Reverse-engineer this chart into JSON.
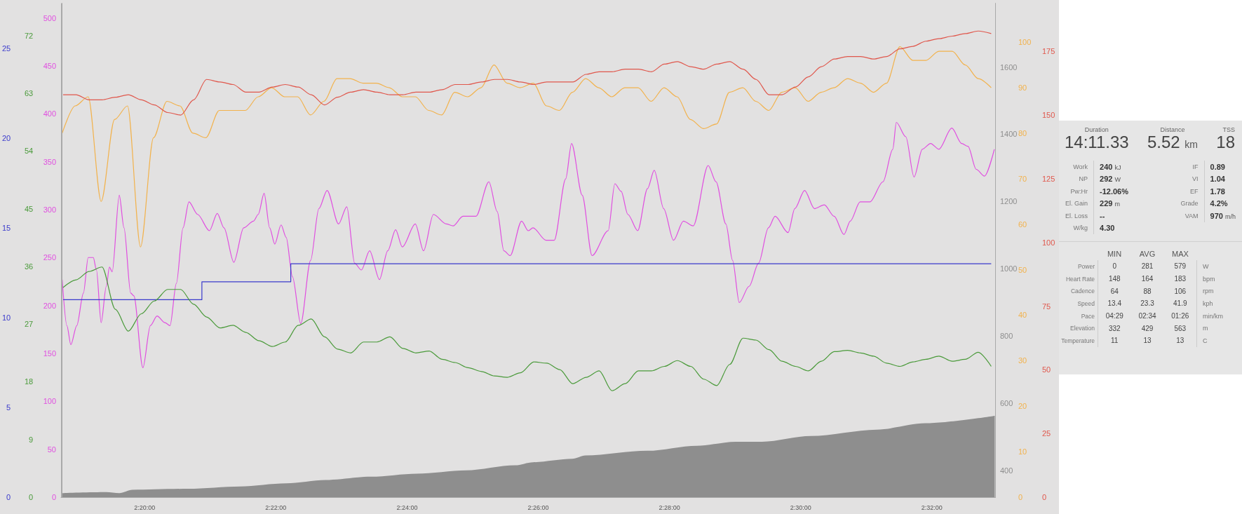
{
  "chart_data": [
    {
      "type": "line",
      "marker": "none",
      "xlim": [
        2.3121,
        2.5494
      ],
      "xticks": [
        {
          "value": 2.33333,
          "label": "2:20:00"
        },
        {
          "value": 2.36667,
          "label": "2:22:00"
        },
        {
          "value": 2.4,
          "label": "2:24:00"
        },
        {
          "value": 2.43333,
          "label": "2:26:00"
        },
        {
          "value": 2.46667,
          "label": "2:28:00"
        },
        {
          "value": 2.5,
          "label": "2:30:00"
        },
        {
          "value": 2.53333,
          "label": "2:32:00"
        }
      ],
      "ylim": [
        0,
        515
      ],
      "yticks": [
        0,
        50,
        100,
        150,
        200,
        250,
        300,
        350,
        400,
        450,
        500
      ],
      "y2lim": [
        320,
        1789
      ],
      "y2ticks": [
        400,
        600,
        800,
        1000,
        1200,
        1400,
        1600
      ],
      "y3lim": [
        0,
        108.5
      ],
      "y3ticks": [
        0,
        10,
        20,
        30,
        40,
        50,
        60,
        70,
        80,
        90,
        100
      ],
      "series": [
        {
          "type": "area",
          "axis": "y2",
          "color": "#8e8e8e",
          "x": [
            2.3124,
            2.3236,
            2.3269,
            2.3302,
            2.3444,
            2.3576,
            2.3693,
            2.3793,
            2.3909,
            2.4025,
            2.415,
            2.4275,
            2.432,
            2.442,
            2.4453,
            2.4611,
            2.4736,
            2.4835,
            2.4902,
            2.5026,
            2.5193,
            2.5317,
            2.5493
          ],
          "values": [
            332,
            335,
            332,
            342,
            345,
            352,
            361,
            371,
            381,
            390,
            400,
            415,
            424,
            434,
            444,
            458,
            473,
            485,
            485,
            502,
            521,
            540,
            562
          ]
        },
        {
          "type": "line",
          "color": "#e04fe0",
          "x": [
            2.3124,
            2.3136,
            2.3146,
            2.3161,
            2.3178,
            2.319,
            2.3203,
            2.3211,
            2.3223,
            2.3236,
            2.3244,
            2.3251,
            2.3269,
            2.3281,
            2.3298,
            2.3306,
            2.3329,
            2.3348,
            2.3365,
            2.3385,
            2.3398,
            2.3414,
            2.3431,
            2.3446,
            2.3468,
            2.3498,
            2.3518,
            2.3535,
            2.356,
            2.3585,
            2.361,
            2.3622,
            2.3637,
            2.3651,
            2.3664,
            2.368,
            2.3693,
            2.3709,
            2.373,
            2.3755,
            2.3776,
            2.3797,
            2.3826,
            2.3847,
            2.3867,
            2.3884,
            2.3905,
            2.393,
            2.3951,
            2.3971,
            2.3988,
            2.4021,
            2.4042,
            2.4067,
            2.41,
            2.4117,
            2.4142,
            2.4175,
            2.4208,
            2.4229,
            2.4246,
            2.4262,
            2.4291,
            2.4308,
            2.432,
            2.4353,
            2.4374,
            2.4403,
            2.4418,
            2.4445,
            2.447,
            2.4511,
            2.4528,
            2.4544,
            2.4561,
            2.4586,
            2.4611,
            2.4628,
            2.4652,
            2.4677,
            2.4702,
            2.4727,
            2.4765,
            2.4785,
            2.481,
            2.4827,
            2.4844,
            2.4869,
            2.4893,
            2.4918,
            2.4935,
            2.4968,
            2.4985,
            2.501,
            2.5035,
            2.506,
            2.5085,
            2.511,
            2.5126,
            2.5151,
            2.5176,
            2.5209,
            2.5234,
            2.5243,
            2.5267,
            2.5288,
            2.5309,
            2.533,
            2.5351,
            2.5384,
            2.5409,
            2.5425,
            2.5446,
            2.5467,
            2.5492
          ],
          "values": [
            227,
            179,
            159,
            179,
            213,
            250,
            250,
            237,
            182,
            220,
            240,
            235,
            315,
            281,
            213,
            210,
            135,
            179,
            189,
            182,
            179,
            223,
            281,
            308,
            295,
            278,
            296,
            281,
            245,
            281,
            288,
            295,
            317,
            281,
            264,
            284,
            271,
            230,
            181,
            247,
            301,
            320,
            285,
            303,
            244,
            237,
            257,
            227,
            257,
            279,
            261,
            285,
            257,
            295,
            285,
            283,
            293,
            293,
            329,
            298,
            257,
            252,
            288,
            278,
            281,
            268,
            268,
            332,
            369,
            315,
            252,
            278,
            327,
            319,
            295,
            278,
            322,
            341,
            301,
            268,
            288,
            283,
            346,
            329,
            285,
            247,
            203,
            220,
            244,
            281,
            293,
            276,
            301,
            320,
            301,
            305,
            293,
            274,
            288,
            308,
            308,
            329,
            363,
            391,
            376,
            334,
            363,
            369,
            363,
            385,
            369,
            366,
            342,
            335,
            363
          ]
        },
        {
          "type": "line",
          "axis": "y3",
          "color": "#f2b24c",
          "x": [
            2.3124,
            2.3157,
            2.319,
            2.3223,
            2.3257,
            2.329,
            2.3323,
            2.3356,
            2.339,
            2.3423,
            2.3456,
            2.3489,
            2.3523,
            2.3556,
            2.3589,
            2.3622,
            2.3656,
            2.3689,
            2.3722,
            2.3755,
            2.3789,
            2.3822,
            2.3855,
            2.3888,
            2.3922,
            2.3955,
            2.3988,
            2.4021,
            2.4055,
            2.4088,
            2.4121,
            2.4154,
            2.4188,
            2.4221,
            2.4254,
            2.4287,
            2.4321,
            2.4354,
            2.4387,
            2.442,
            2.4454,
            2.4487,
            2.452,
            2.4553,
            2.4587,
            2.462,
            2.4653,
            2.4686,
            2.472,
            2.4753,
            2.4786,
            2.4819,
            2.4853,
            2.4886,
            2.4919,
            2.4952,
            2.4986,
            2.5019,
            2.5052,
            2.5085,
            2.5119,
            2.5152,
            2.5185,
            2.5218,
            2.5252,
            2.5285,
            2.5318,
            2.5351,
            2.5385,
            2.5418,
            2.5451,
            2.5484
          ],
          "values": [
            80,
            86,
            88,
            65,
            83,
            86,
            55,
            79,
            87,
            86,
            80,
            79,
            85,
            85,
            85,
            88,
            90,
            88,
            88,
            84,
            87,
            92,
            92,
            91,
            91,
            90,
            88,
            88,
            85,
            84,
            89,
            88,
            90,
            95,
            91,
            90,
            91,
            86,
            85,
            89,
            92,
            90,
            88,
            90,
            90,
            87,
            90,
            88,
            83,
            81,
            82,
            89,
            90,
            87,
            85,
            89,
            90,
            87,
            89,
            90,
            92,
            91,
            89,
            91,
            99,
            96,
            96,
            98,
            98,
            95,
            92,
            90
          ]
        }
      ]
    },
    {
      "type": "line",
      "marker": "none",
      "tick_labels": "y",
      "xlim": [
        2.3121,
        2.5494
      ],
      "ylim": [
        0,
        77
      ],
      "yticks": [
        0,
        9,
        18,
        27,
        36,
        45,
        54,
        63,
        72
      ],
      "y2lim": [
        0,
        193.8
      ],
      "y2ticks": [
        0,
        25,
        50,
        75,
        100,
        125,
        150,
        175
      ],
      "y3lim": [
        0,
        27.5
      ],
      "y3ticks": [
        0,
        5,
        10,
        15,
        20,
        25
      ],
      "x": [
        2.3124,
        2.3157,
        2.319,
        2.3223,
        2.3257,
        2.329,
        2.3323,
        2.3356,
        2.339,
        2.3423,
        2.3456,
        2.3489,
        2.3523,
        2.3556,
        2.3589,
        2.3622,
        2.3656,
        2.3689,
        2.3722,
        2.3755,
        2.3789,
        2.3822,
        2.3855,
        2.3888,
        2.3922,
        2.3955,
        2.3988,
        2.4021,
        2.4055,
        2.4088,
        2.4121,
        2.4154,
        2.4188,
        2.4221,
        2.4254,
        2.4287,
        2.4321,
        2.4354,
        2.4387,
        2.442,
        2.4454,
        2.4487,
        2.452,
        2.4553,
        2.4587,
        2.462,
        2.4653,
        2.4686,
        2.472,
        2.4753,
        2.4786,
        2.4819,
        2.4853,
        2.4886,
        2.4919,
        2.4952,
        2.4986,
        2.5019,
        2.5052,
        2.5085,
        2.5119,
        2.5152,
        2.5185,
        2.5218,
        2.5252,
        2.5285,
        2.5318,
        2.5351,
        2.5385,
        2.5418,
        2.5451,
        2.5484
      ],
      "series": [
        {
          "type": "step",
          "axis": "y3",
          "color": "#3a3acc",
          "x": [
            2.3124,
            2.3477,
            2.3703,
            2.5484
          ],
          "values": [
            11,
            12,
            13,
            13
          ]
        },
        {
          "type": "line",
          "color": "#4a9a3a",
          "values": [
            32.7,
            33.9,
            35.2,
            35.9,
            29.3,
            25.9,
            28.6,
            30.6,
            32.4,
            32.4,
            30.1,
            28.1,
            26.4,
            26.8,
            25.7,
            24.4,
            23.5,
            24.2,
            26.8,
            27.8,
            25,
            23.1,
            22.5,
            24.2,
            24.2,
            25,
            23.2,
            22.5,
            22.8,
            21.5,
            21,
            20.2,
            19.6,
            18.9,
            18.7,
            19.4,
            21.1,
            20.9,
            19.9,
            17.7,
            18.7,
            19.7,
            16.6,
            17.7,
            19.7,
            19.7,
            20.4,
            21.3,
            20.4,
            18.4,
            17.4,
            20.7,
            24.8,
            24.5,
            23,
            21.2,
            20.4,
            19.7,
            21.2,
            22.7,
            22.9,
            22.5,
            22,
            20.9,
            20.4,
            21.1,
            21.5,
            22,
            21.2,
            21.5,
            22.6,
            20.4
          ]
        },
        {
          "type": "line",
          "axis": "y2",
          "color": "#e0574c",
          "values": [
            158,
            158,
            156,
            156,
            157,
            158,
            156,
            154,
            151,
            150,
            156,
            164,
            163,
            162,
            159,
            159,
            161,
            162,
            161,
            158,
            154,
            157,
            159,
            160,
            159,
            158,
            158,
            159,
            159,
            160,
            162,
            162,
            163,
            164,
            164,
            163,
            162,
            163,
            163,
            163,
            166,
            167,
            167,
            168,
            168,
            167,
            170,
            171,
            169,
            168,
            170,
            171,
            168,
            164,
            158,
            158,
            161,
            165,
            169,
            172,
            173,
            173,
            172,
            173,
            176,
            177,
            179,
            180,
            181,
            182,
            183,
            182
          ]
        }
      ]
    },
    {
      "type": "other",
      "annotations": [
        "Duration",
        "14:11.33",
        "Distance",
        "5.52 km",
        "TSS",
        "18",
        "Work",
        "240 kJ",
        "NP",
        "292 W",
        "Pw:Hr",
        "-12.06%",
        "El. Gain",
        "229 m",
        "El. Loss",
        "--",
        "W/kg",
        "4.30",
        "IF",
        "0.89",
        "VI",
        "1.04",
        "EF",
        "1.78",
        "Grade",
        "4.2%",
        "VAM",
        "970 m/h"
      ],
      "categories": [
        "MIN",
        "AVG",
        "MAX"
      ],
      "y_categories": [
        "Power",
        "Heart Rate",
        "Cadence",
        "Speed",
        "Pace",
        "Elevation",
        "Temperature"
      ],
      "y2_categories": [
        "W",
        "bpm",
        "rpm",
        "kph",
        "min/km",
        "m",
        "C"
      ],
      "cell_labels": [
        [
          "0",
          "281",
          "579"
        ],
        [
          "148",
          "164",
          "183"
        ],
        [
          "64",
          "88",
          "106"
        ],
        [
          "13.4",
          "23.3",
          "41.9"
        ],
        [
          "04:29",
          "02:34",
          "01:26"
        ],
        [
          "332",
          "429",
          "563"
        ],
        [
          "11",
          "13",
          "13"
        ]
      ]
    }
  ]
}
